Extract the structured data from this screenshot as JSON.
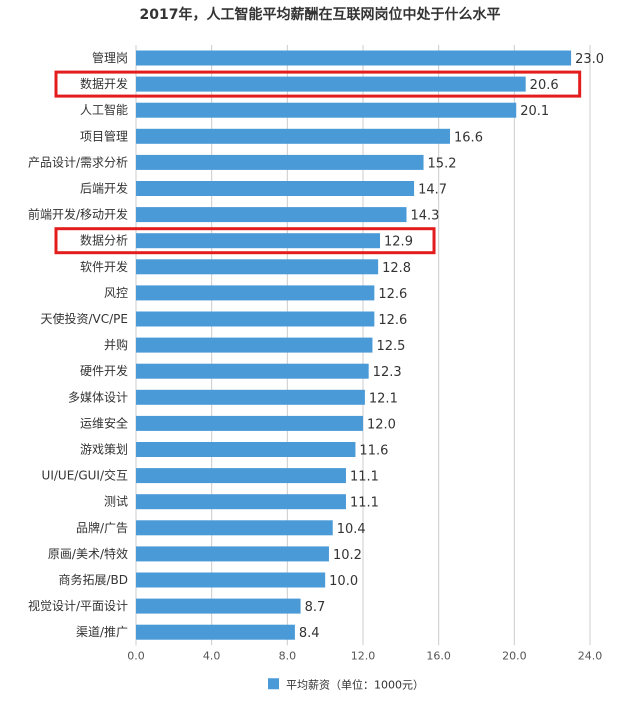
{
  "chart_data": {
    "type": "bar",
    "orientation": "horizontal",
    "title": "2017年，人工智能平均薪酬在互联网岗位中处于什么水平",
    "categories": [
      "管理岗",
      "数据开发",
      "人工智能",
      "项目管理",
      "产品设计/需求分析",
      "后端开发",
      "前端开发/移动开发",
      "数据分析",
      "软件开发",
      "风控",
      "天使投资/VC/PE",
      "并购",
      "硬件开发",
      "多媒体设计",
      "运维安全",
      "游戏策划",
      "UI/UE/GUI/交互",
      "测试",
      "品牌/广告",
      "原画/美术/特效",
      "商务拓展/BD",
      "视觉设计/平面设计",
      "渠道/推广"
    ],
    "series": [
      {
        "name": "平均薪资（单位：1000元）",
        "values": [
          23.0,
          20.6,
          20.1,
          16.6,
          15.2,
          14.7,
          14.3,
          12.9,
          12.8,
          12.6,
          12.6,
          12.5,
          12.3,
          12.1,
          12.0,
          11.6,
          11.1,
          11.1,
          10.4,
          10.2,
          10.0,
          8.7,
          8.4
        ],
        "value_labels": [
          "23.0",
          "20.6",
          "20.1",
          "16.6",
          "15.2",
          "14.7",
          "14.3",
          "12.9",
          "12.8",
          "12.6",
          "12.6",
          "12.5",
          "12.3",
          "12.1",
          "12.0",
          "11.6",
          "11.1",
          "11.1",
          "10.4",
          "10.2",
          "10.0",
          "8.7",
          "8.4"
        ]
      }
    ],
    "xlim": [
      0,
      24
    ],
    "xticks": [
      "0.0",
      "4.0",
      "8.0",
      "12.0",
      "16.0",
      "20.0",
      "24.0"
    ],
    "xtick_values": [
      0,
      4,
      8,
      12,
      16,
      20,
      24
    ],
    "grid": true,
    "legend": "bottom",
    "highlighted": [
      "数据开发",
      "数据分析"
    ],
    "colors": {
      "bar": "#4a9ad8",
      "highlight": "#e31d1d",
      "grid": "#cccccc"
    }
  }
}
